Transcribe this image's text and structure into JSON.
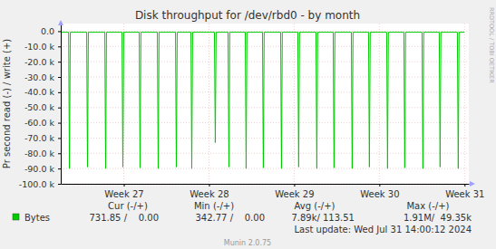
{
  "chart_data": {
    "type": "line",
    "title": "Disk throughput for /dev/rbd0 - by month",
    "y_label": "Pr second read (-) / write (+)",
    "x": [
      26.27,
      26.352,
      26.362,
      26.372,
      26.564,
      26.574,
      26.584,
      26.777,
      26.787,
      26.797,
      26.979,
      26.989,
      26.999,
      27.181,
      27.191,
      27.201,
      27.394,
      27.404,
      27.414,
      27.607,
      27.617,
      27.627,
      27.788,
      27.798,
      27.808,
      28.064,
      28.074,
      28.084,
      28.224,
      28.234,
      28.244,
      28.426,
      28.436,
      28.446,
      28.628,
      28.638,
      28.648,
      28.841,
      28.851,
      28.861,
      29.043,
      29.053,
      29.063,
      29.256,
      29.266,
      29.276,
      29.458,
      29.468,
      29.478,
      29.671,
      29.681,
      29.691,
      29.873,
      29.883,
      29.893,
      30.086,
      30.096,
      30.106,
      30.288,
      30.298,
      30.308,
      30.501,
      30.511,
      30.521,
      30.703,
      30.713,
      30.723,
      30.916,
      30.926,
      30.936,
      31.0
    ],
    "series": [
      {
        "name": "Bytes",
        "color": "#00cc00",
        "values": [
          -700,
          -700,
          -90000,
          -700,
          -700,
          -89000,
          -700,
          -700,
          -90000,
          -700,
          -700,
          -89000,
          -700,
          -700,
          -89500,
          -700,
          -700,
          -90000,
          -700,
          -700,
          -89000,
          -700,
          -700,
          -90000,
          -700,
          -700,
          -73000,
          -700,
          -700,
          -89000,
          -700,
          -700,
          -90000,
          -700,
          -700,
          -89500,
          -700,
          -700,
          -90000,
          -700,
          -700,
          -89000,
          -700,
          -700,
          -90000,
          -700,
          -700,
          -89500,
          -700,
          -700,
          -90000,
          -700,
          -700,
          -89000,
          -700,
          -700,
          -90000,
          -700,
          -700,
          -89500,
          -700,
          -700,
          -90000,
          -700,
          -700,
          -89000,
          -700,
          -700,
          -90000,
          -700,
          -732
        ]
      }
    ],
    "xlim": [
      26.26,
      31.05
    ],
    "xticks": [
      {
        "value": 27,
        "label": "Week 27"
      },
      {
        "value": 28,
        "label": "Week 28"
      },
      {
        "value": 29,
        "label": "Week 29"
      },
      {
        "value": 30,
        "label": "Week 30"
      },
      {
        "value": 31,
        "label": "Week 31"
      }
    ],
    "ylim": [
      -100000,
      5000
    ],
    "yticks": [
      {
        "value": 0,
        "label": "0.0"
      },
      {
        "value": -10000,
        "label": "-10.0 k"
      },
      {
        "value": -20000,
        "label": "-20.0 k"
      },
      {
        "value": -30000,
        "label": "-30.0 k"
      },
      {
        "value": -40000,
        "label": "-40.0 k"
      },
      {
        "value": -50000,
        "label": "-50.0 k"
      },
      {
        "value": -60000,
        "label": "-60.0 k"
      },
      {
        "value": -70000,
        "label": "-70.0 k"
      },
      {
        "value": -80000,
        "label": "-80.0 k"
      },
      {
        "value": -90000,
        "label": "-90.0 k"
      },
      {
        "value": -100000,
        "label": "-100.0 k"
      }
    ],
    "grid": true,
    "legend_stats": {
      "headers": [
        "Cur (-/+)",
        "Min (-/+)",
        "Avg (-/+)",
        "Max (-/+)"
      ],
      "values": [
        "731.85 /    0.00",
        "342.77 /    0.00",
        "7.89k/ 113.51",
        "1.91M/  49.35k"
      ]
    },
    "footer": "Last update: Wed Jul 31 14:00:12 2024",
    "credit": "Munin 2.0.75",
    "watermark": "RRDTOOL / TOBI OETIKER"
  }
}
